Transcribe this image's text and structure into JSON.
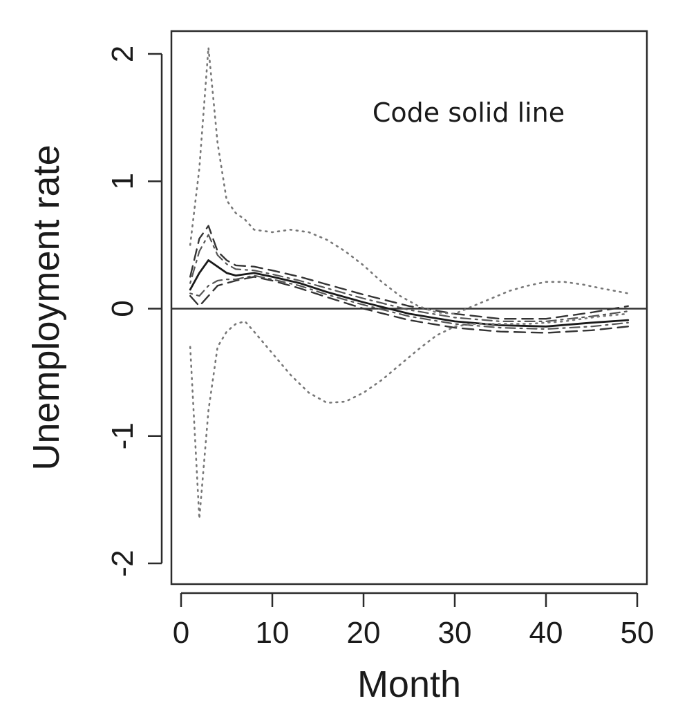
{
  "chart_data": {
    "type": "line",
    "title": "",
    "xlabel": "Month",
    "ylabel": "Unemployment rate",
    "xlim": [
      0,
      50
    ],
    "ylim": [
      -2,
      2
    ],
    "xticks": [
      0,
      10,
      20,
      30,
      40,
      50
    ],
    "yticks": [
      -2,
      -1,
      0,
      1,
      2
    ],
    "grid": false,
    "annotation": "Code solid line",
    "reference_line": {
      "y": 0
    },
    "series": [
      {
        "style": "solid",
        "color": "#1a1a1a",
        "x": [
          1,
          2,
          3,
          4,
          5,
          6,
          8,
          10,
          13,
          16,
          20,
          25,
          30,
          35,
          40,
          45,
          49
        ],
        "y": [
          0.15,
          0.28,
          0.38,
          0.33,
          0.28,
          0.26,
          0.28,
          0.25,
          0.2,
          0.13,
          0.05,
          -0.04,
          -0.1,
          -0.13,
          -0.14,
          -0.11,
          -0.09
        ]
      },
      {
        "style": "dashed",
        "color": "#333333",
        "x": [
          1,
          2,
          3,
          4,
          5,
          6,
          8,
          10,
          13,
          16,
          20,
          25,
          30,
          35,
          40,
          45,
          49
        ],
        "y": [
          0.25,
          0.55,
          0.65,
          0.45,
          0.38,
          0.34,
          0.33,
          0.3,
          0.25,
          0.19,
          0.11,
          0.02,
          -0.04,
          -0.08,
          -0.08,
          -0.03,
          0.02
        ]
      },
      {
        "style": "dashed",
        "color": "#333333",
        "x": [
          1,
          2,
          3,
          4,
          5,
          6,
          8,
          10,
          13,
          16,
          20,
          25,
          30,
          35,
          40,
          45,
          49
        ],
        "y": [
          0.1,
          0.02,
          0.1,
          0.18,
          0.2,
          0.22,
          0.25,
          0.22,
          0.16,
          0.09,
          0.0,
          -0.09,
          -0.15,
          -0.18,
          -0.19,
          -0.17,
          -0.14
        ]
      },
      {
        "style": "dotdash",
        "color": "#555555",
        "x": [
          1,
          2,
          3,
          4,
          5,
          6,
          8,
          10,
          13,
          16,
          20,
          25,
          30,
          35,
          40,
          45,
          49
        ],
        "y": [
          0.2,
          0.45,
          0.58,
          0.42,
          0.35,
          0.31,
          0.3,
          0.27,
          0.22,
          0.16,
          0.08,
          -0.01,
          -0.07,
          -0.1,
          -0.1,
          -0.06,
          -0.02
        ]
      },
      {
        "style": "dotdash",
        "color": "#555555",
        "x": [
          1,
          2,
          3,
          4,
          5,
          6,
          8,
          10,
          13,
          16,
          20,
          25,
          30,
          35,
          40,
          45,
          49
        ],
        "y": [
          0.12,
          0.1,
          0.18,
          0.22,
          0.23,
          0.23,
          0.26,
          0.23,
          0.18,
          0.11,
          0.03,
          -0.06,
          -0.12,
          -0.15,
          -0.16,
          -0.14,
          -0.11
        ]
      },
      {
        "style": "dotted",
        "color": "#777777",
        "x": [
          1,
          2,
          3,
          4,
          5,
          6,
          7,
          8,
          10,
          12,
          14,
          16,
          18,
          20,
          22,
          24,
          26,
          28,
          30,
          32,
          34,
          36,
          38,
          40,
          42,
          44,
          46,
          49
        ],
        "y": [
          0.5,
          1.1,
          2.05,
          1.3,
          0.85,
          0.75,
          0.7,
          0.62,
          0.6,
          0.62,
          0.6,
          0.54,
          0.45,
          0.34,
          0.21,
          0.1,
          0.02,
          -0.03,
          -0.04,
          0.02,
          0.08,
          0.14,
          0.18,
          0.21,
          0.21,
          0.19,
          0.16,
          0.12
        ]
      },
      {
        "style": "dotted",
        "color": "#777777",
        "x": [
          1,
          2,
          3,
          4,
          5,
          6,
          7,
          8,
          10,
          12,
          14,
          16,
          18,
          20,
          22,
          24,
          26,
          28,
          30,
          32,
          34,
          36,
          38,
          40,
          42,
          44,
          46,
          49
        ],
        "y": [
          -0.3,
          -1.65,
          -0.8,
          -0.3,
          -0.18,
          -0.12,
          -0.1,
          -0.18,
          -0.35,
          -0.52,
          -0.66,
          -0.74,
          -0.73,
          -0.66,
          -0.56,
          -0.44,
          -0.32,
          -0.21,
          -0.14,
          -0.12,
          -0.12,
          -0.12,
          -0.12,
          -0.11,
          -0.1,
          -0.08,
          -0.06,
          -0.04
        ]
      }
    ]
  }
}
